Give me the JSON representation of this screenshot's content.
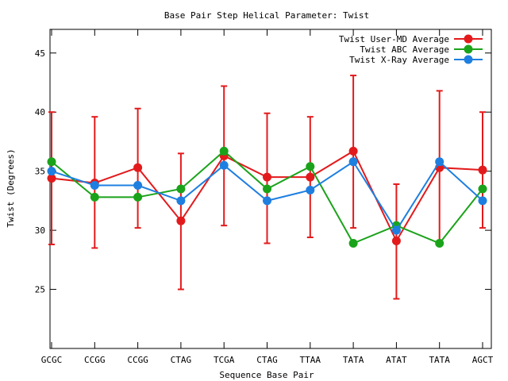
{
  "chart_data": {
    "type": "line",
    "title": "Base Pair Step Helical Parameter: Twist",
    "xlabel": "Sequence Base Pair",
    "ylabel": "Twist (Degrees)",
    "categories": [
      "GCGC",
      "CCGG",
      "CCGG",
      "CTAG",
      "TCGA",
      "CTAG",
      "TTAA",
      "TATA",
      "ATAT",
      "TATA",
      "AGCT"
    ],
    "ylim": [
      20,
      47
    ],
    "yticks": [
      25,
      30,
      35,
      40,
      45
    ],
    "legend_position": "top-right",
    "grid": false,
    "series": [
      {
        "name": "Twist User-MD Average",
        "color": "#e31a1c",
        "values": [
          34.4,
          34.0,
          35.3,
          30.8,
          36.3,
          34.5,
          34.5,
          36.7,
          29.1,
          35.3,
          35.1
        ],
        "error_low": [
          28.8,
          28.5,
          30.2,
          25.0,
          30.4,
          28.9,
          29.4,
          30.2,
          24.2,
          28.8,
          30.2
        ],
        "error_high": [
          40.0,
          39.6,
          40.3,
          36.5,
          42.2,
          39.9,
          39.6,
          43.1,
          33.9,
          41.8,
          40.0
        ]
      },
      {
        "name": "Twist ABC Average",
        "color": "#1aa31a",
        "values": [
          35.8,
          32.8,
          32.8,
          33.5,
          36.7,
          33.5,
          35.4,
          28.9,
          30.4,
          28.9,
          33.5
        ]
      },
      {
        "name": "Twist X-Ray Average",
        "color": "#1e7fe0",
        "values": [
          35.0,
          33.8,
          33.8,
          32.5,
          35.5,
          32.5,
          33.4,
          35.8,
          30.0,
          35.8,
          32.5
        ]
      }
    ]
  }
}
